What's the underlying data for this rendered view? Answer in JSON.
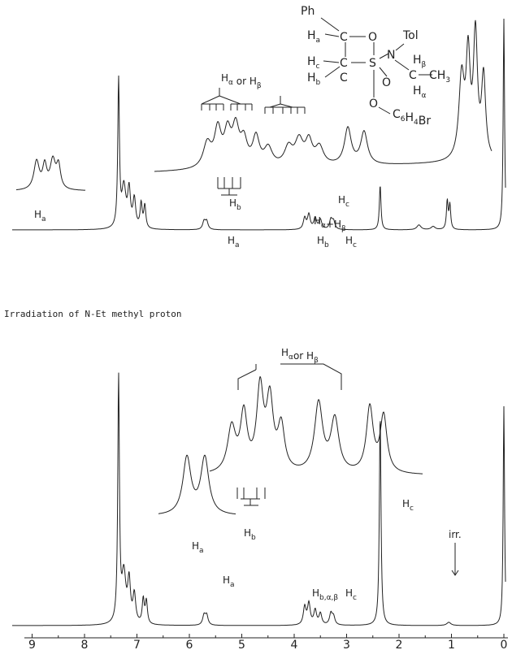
{
  "labels": [
    {
      "parts": [
        {
          "text": "Ph"
        }
      ]
    },
    {
      "parts": [
        {
          "text": "H",
          "sub": "a"
        }
      ]
    },
    {
      "parts": [
        {
          "text": "C"
        }
      ]
    },
    {
      "parts": [
        {
          "text": "O"
        }
      ]
    },
    {
      "parts": [
        {
          "text": "Tol"
        }
      ]
    },
    {
      "parts": [
        {
          "text": "N"
        }
      ]
    },
    {
      "parts": [
        {
          "text": "H",
          "sub": "c"
        }
      ]
    },
    {
      "parts": [
        {
          "text": "C"
        }
      ]
    },
    {
      "parts": [
        {
          "text": "S"
        }
      ]
    },
    {
      "parts": [
        {
          "text": "H",
          "sub": "β"
        }
      ]
    },
    {
      "parts": [
        {
          "text": "C"
        }
      ]
    },
    {
      "parts": [
        {
          "text": "CH",
          "sub": "3"
        }
      ]
    },
    {
      "parts": [
        {
          "text": "H",
          "sub": "α"
        }
      ]
    },
    {
      "parts": [
        {
          "text": "H",
          "sub": "b"
        }
      ]
    },
    {
      "parts": [
        {
          "text": "C"
        }
      ]
    },
    {
      "parts": [
        {
          "text": "O"
        }
      ]
    },
    {
      "parts": [
        {
          "text": "O"
        }
      ]
    },
    {
      "parts": [
        {
          "text": "C",
          "sub": "6"
        },
        {
          "text": "H",
          "sub": "4"
        },
        {
          "text": "Br"
        }
      ]
    },
    {
      "parts": [
        {
          "text": "H",
          "sub": "α"
        },
        {
          "text": " or H",
          "sub": "β"
        }
      ]
    },
    {
      "parts": [
        {
          "text": "H",
          "sub": "a"
        }
      ]
    },
    {
      "parts": [
        {
          "text": "H",
          "sub": "b"
        }
      ]
    },
    {
      "parts": [
        {
          "text": "H",
          "sub": "c"
        }
      ]
    },
    {
      "parts": [
        {
          "text": "H",
          "sub": "α"
        },
        {
          "text": "+H",
          "sub": "β"
        }
      ]
    },
    {
      "parts": [
        {
          "text": "H",
          "sub": "a"
        }
      ]
    },
    {
      "parts": [
        {
          "text": "H",
          "sub": "b"
        }
      ]
    },
    {
      "parts": [
        {
          "text": "H",
          "sub": "c"
        }
      ]
    },
    {
      "parts": [
        {
          "text": "Irradiation of N-Et methyl proton"
        }
      ]
    },
    {
      "parts": [
        {
          "text": "H",
          "sub": "α"
        },
        {
          "text": "or H",
          "sub": "β"
        }
      ]
    },
    {
      "parts": [
        {
          "text": "H",
          "sub": "a"
        }
      ]
    },
    {
      "parts": [
        {
          "text": "H",
          "sub": "b"
        }
      ]
    },
    {
      "parts": [
        {
          "text": "H",
          "sub": "c"
        }
      ]
    },
    {
      "parts": [
        {
          "text": "H",
          "sub": "a"
        }
      ]
    },
    {
      "parts": [
        {
          "text": "H",
          "sub": "b,α,β"
        }
      ]
    },
    {
      "parts": [
        {
          "text": "H",
          "sub": "c"
        }
      ]
    },
    {
      "parts": [
        {
          "text": "irr."
        }
      ]
    }
  ],
  "axis": {
    "ticks": [
      9,
      8,
      7,
      6,
      5,
      4,
      3,
      2,
      1,
      0
    ]
  }
}
